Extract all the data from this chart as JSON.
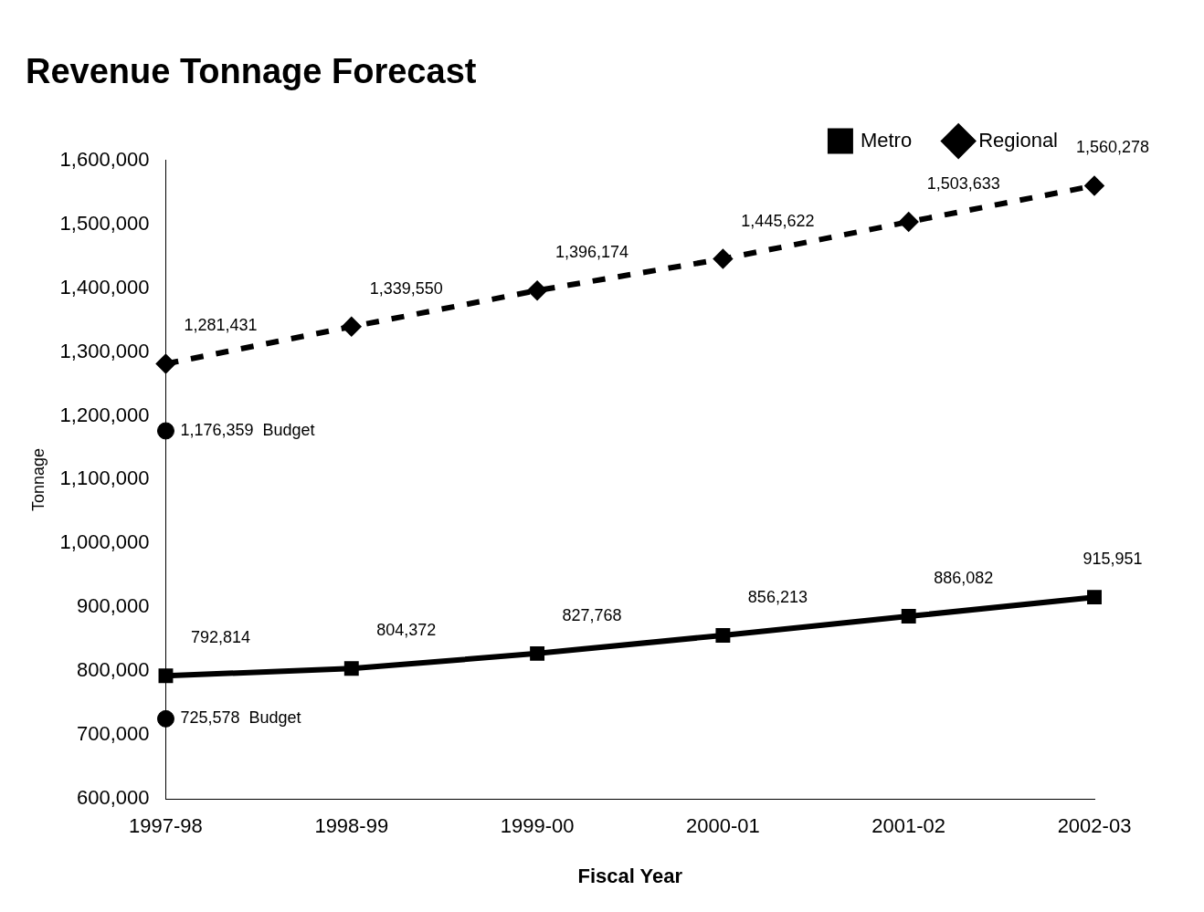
{
  "chart_data": {
    "type": "line",
    "title": "Revenue Tonnage Forecast",
    "xlabel": "Fiscal Year",
    "ylabel": "Tonnage",
    "categories": [
      "1997-98",
      "1998-99",
      "1999-00",
      "2000-01",
      "2001-02",
      "2002-03"
    ],
    "series": [
      {
        "name": "Metro",
        "color": "#000000",
        "marker": "square",
        "line_style": "solid",
        "values": [
          792814,
          804372,
          827768,
          856213,
          886082,
          915951
        ],
        "value_labels": [
          "792,814",
          "804,372",
          "827,768",
          "856,213",
          "886,082",
          "915,951"
        ]
      },
      {
        "name": "Regional",
        "color": "#000000",
        "marker": "diamond",
        "line_style": "dashed",
        "values": [
          1281431,
          1339550,
          1396174,
          1445622,
          1503633,
          1560278
        ],
        "value_labels": [
          "1,281,431",
          "1,339,550",
          "1,396,174",
          "1,445,622",
          "1,503,633",
          "1,560,278"
        ]
      },
      {
        "type": "scatter",
        "color": "#000000",
        "marker": "circle",
        "x": [
          "1997-98",
          "1997-98"
        ],
        "values": [
          1176359,
          725578
        ],
        "value_labels": [
          "1,176,359  Budget",
          "725,578  Budget"
        ]
      }
    ],
    "ylim": [
      600000,
      1600000
    ],
    "yticks": [
      {
        "value": 600000,
        "label": "600,000"
      },
      {
        "value": 700000,
        "label": "700,000"
      },
      {
        "value": 800000,
        "label": "800,000"
      },
      {
        "value": 900000,
        "label": "900,000"
      },
      {
        "value": 1000000,
        "label": "1,000,000"
      },
      {
        "value": 1100000,
        "label": "1,100,000"
      },
      {
        "value": 1200000,
        "label": "1,200,000"
      },
      {
        "value": 1300000,
        "label": "1,300,000"
      },
      {
        "value": 1400000,
        "label": "1,400,000"
      },
      {
        "value": 1500000,
        "label": "1,500,000"
      },
      {
        "value": 1600000,
        "label": "1,600,000"
      }
    ],
    "grid": false,
    "legend": "top right"
  }
}
